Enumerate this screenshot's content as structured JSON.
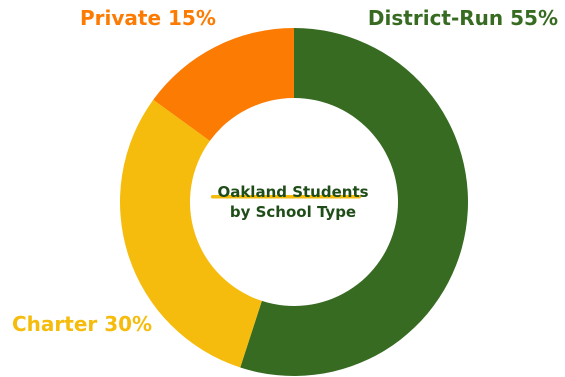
{
  "chart_data": {
    "type": "pie",
    "variant": "donut",
    "title": "Oakland Students\nby School Type",
    "title_lines": [
      "Oakland Students",
      "by School Type"
    ],
    "categories": [
      "District-Run",
      "Charter",
      "Private"
    ],
    "values": [
      55,
      30,
      15
    ],
    "unit": "%",
    "labels": [
      "District-Run 55%",
      "Charter 30%",
      "Private 15%"
    ],
    "colors": [
      "#386b22",
      "#f5bc0d",
      "#fb7b03"
    ],
    "title_underline_color": "#f5bc0d",
    "legend": "none"
  }
}
